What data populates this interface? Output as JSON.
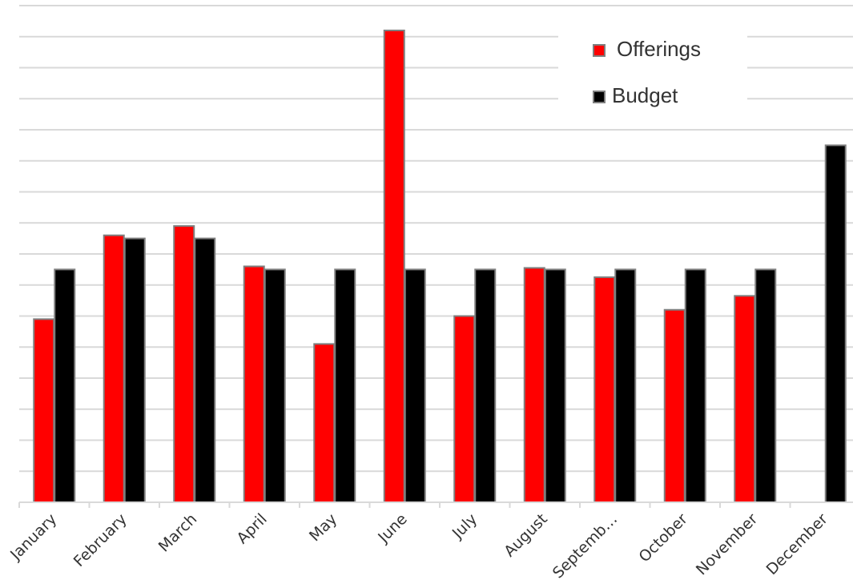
{
  "chart_data": {
    "type": "bar",
    "categories": [
      "January",
      "February",
      "March",
      "April",
      "May",
      "June",
      "July",
      "August",
      "Septemb…",
      "October",
      "November",
      "December"
    ],
    "series": [
      {
        "name": "Offerings",
        "color": "#ff0000",
        "values": [
          5.9,
          8.6,
          8.9,
          7.6,
          5.1,
          15.2,
          6.0,
          7.55,
          7.25,
          6.2,
          6.65,
          null
        ]
      },
      {
        "name": "Budget",
        "color": "#000000",
        "values": [
          7.5,
          8.5,
          8.5,
          7.5,
          7.5,
          7.5,
          7.5,
          7.5,
          7.5,
          7.5,
          7.5,
          11.5
        ]
      }
    ],
    "ylim": [
      0,
      16
    ],
    "grid": true,
    "legend_position": "top-right",
    "bar_outline_color": "#7f7f7f",
    "gridline_color": "#d9d9d9"
  }
}
